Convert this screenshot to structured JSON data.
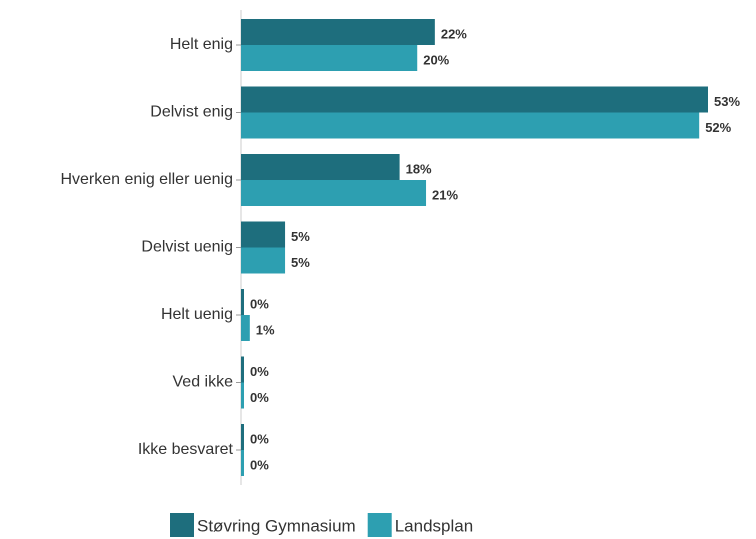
{
  "chart_data": {
    "type": "bar",
    "orientation": "horizontal",
    "categories": [
      "Helt enig",
      "Delvist enig",
      "Hverken enig eller uenig",
      "Delvist uenig",
      "Helt uenig",
      "Ved ikke",
      "Ikke besvaret"
    ],
    "series": [
      {
        "name": "Støvring Gymnasium",
        "color": "#1e6e7d",
        "values": [
          22,
          53,
          18,
          5,
          0,
          0,
          0
        ],
        "value_labels": [
          "22%",
          "53%",
          "18%",
          "5%",
          "0%",
          "0%",
          "0%"
        ]
      },
      {
        "name": "Landsplan",
        "color": "#2d9fb1",
        "values": [
          20,
          52,
          21,
          5,
          1,
          0,
          0
        ],
        "value_labels": [
          "20%",
          "52%",
          "21%",
          "5%",
          "1%",
          "0%",
          "0%"
        ]
      }
    ],
    "legend": "bottom"
  }
}
